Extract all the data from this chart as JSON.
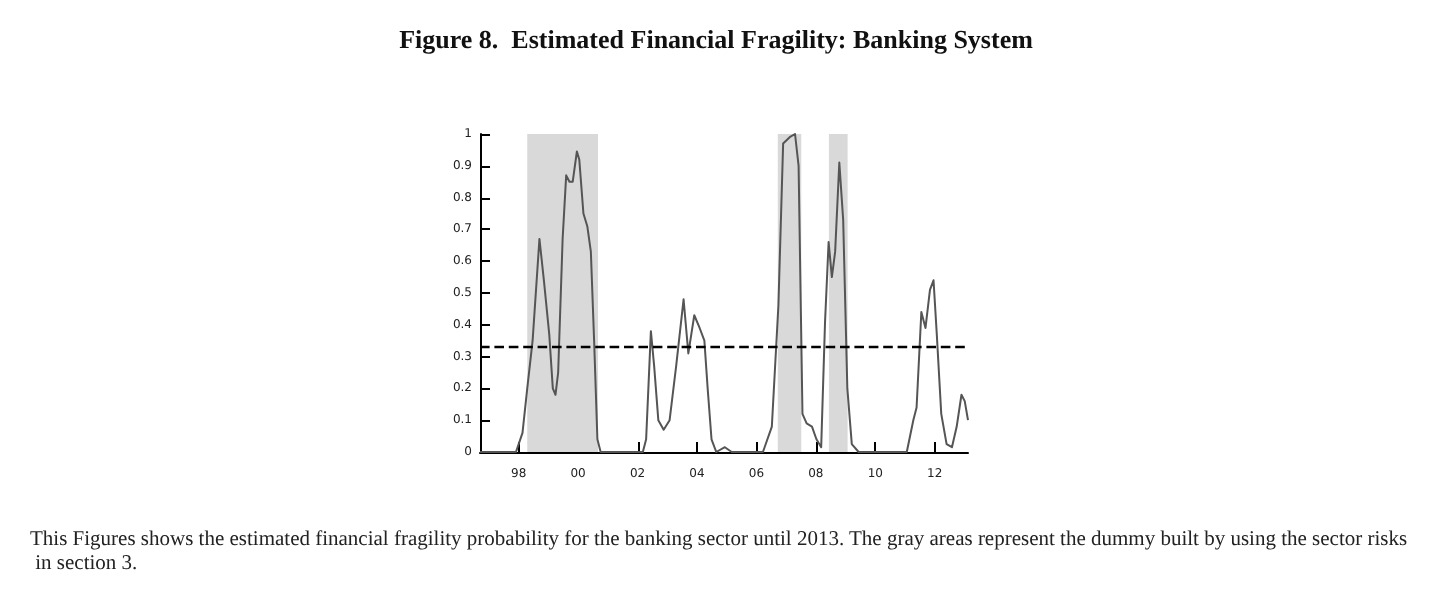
{
  "chart_data": {
    "type": "line",
    "title": "Figure 8.  Estimated Financial Fragility: Banking System",
    "annotations": [
      "This Figures shows the estimated financial fragility probability for the banking sector until 2013. The gray areas represent the dummy built by using the sector risks in section 3."
    ],
    "x": [
      1996.7,
      1997.91,
      1998.13,
      1998.29,
      1998.47,
      1998.7,
      1998.85,
      1999.03,
      1999.15,
      1999.24,
      1999.33,
      1999.48,
      1999.6,
      1999.71,
      1999.82,
      1999.96,
      2000.04,
      2000.18,
      2000.31,
      2000.43,
      2000.54,
      2000.65,
      2000.76,
      2002.18,
      2002.29,
      2002.45,
      2002.56,
      2002.7,
      2002.88,
      2003.08,
      2003.3,
      2003.55,
      2003.71,
      2003.91,
      2004.09,
      2004.25,
      2004.36,
      2004.49,
      2004.65,
      2004.94,
      2005.17,
      2006.22,
      2006.52,
      2006.74,
      2006.9,
      2007.12,
      2007.3,
      2007.42,
      2007.55,
      2007.69,
      2007.87,
      2008.02,
      2008.18,
      2008.31,
      2008.43,
      2008.54,
      2008.65,
      2008.79,
      2008.92,
      2009.06,
      2009.21,
      2009.44,
      2011.06,
      2011.28,
      2011.39,
      2011.55,
      2011.69,
      2011.84,
      2011.96,
      2012.07,
      2012.22,
      2012.4,
      2012.58,
      2012.74,
      2012.9,
      2013.01,
      2013.12
    ],
    "series": [
      {
        "color": "#555555",
        "values": [
          0,
          0,
          0.06,
          0.2,
          0.35,
          0.67,
          0.54,
          0.37,
          0.2,
          0.18,
          0.25,
          0.67,
          0.87,
          0.85,
          0.85,
          0.945,
          0.92,
          0.75,
          0.71,
          0.63,
          0.35,
          0.04,
          0,
          0,
          0.04,
          0.38,
          0.27,
          0.1,
          0.07,
          0.1,
          0.27,
          0.48,
          0.31,
          0.43,
          0.39,
          0.35,
          0.2,
          0.04,
          0,
          0.015,
          0,
          0,
          0.08,
          0.46,
          0.97,
          0.99,
          1,
          0.9,
          0.12,
          0.09,
          0.08,
          0.04,
          0.015,
          0.41,
          0.66,
          0.55,
          0.63,
          0.91,
          0.73,
          0.2,
          0.025,
          0,
          0,
          0.1,
          0.14,
          0.44,
          0.39,
          0.51,
          0.54,
          0.37,
          0.12,
          0.025,
          0.015,
          0.08,
          0.18,
          0.16,
          0.1
        ]
      }
    ],
    "xlim": [
      1996.7,
      2013.12
    ],
    "xticks": [
      {
        "value": 1998,
        "label": "98"
      },
      {
        "value": 2000,
        "label": "00"
      },
      {
        "value": 2002,
        "label": "02"
      },
      {
        "value": 2004,
        "label": "04"
      },
      {
        "value": 2006,
        "label": "06"
      },
      {
        "value": 2008,
        "label": "08"
      },
      {
        "value": 2010,
        "label": "10"
      },
      {
        "value": 2012,
        "label": "12"
      }
    ],
    "ylim": [
      0,
      1
    ],
    "yticks": [
      0,
      0.1,
      0.2,
      0.3,
      0.4,
      0.5,
      0.6,
      0.7,
      0.8,
      0.9,
      1
    ],
    "ref_lines": [
      {
        "axis": "y",
        "value": 0.33,
        "color": "#000000",
        "line_style": "dashed"
      }
    ],
    "bands": [
      {
        "axis": "x",
        "from": 1998.29,
        "to": 2000.67,
        "color": "#d9d9d9"
      },
      {
        "axis": "x",
        "from": 2006.72,
        "to": 2007.51,
        "color": "#d9d9d9"
      },
      {
        "axis": "x",
        "from": 2008.44,
        "to": 2009.07,
        "color": "#d9d9d9"
      }
    ],
    "grid": false,
    "marker": "none",
    "line_style": "solid"
  }
}
